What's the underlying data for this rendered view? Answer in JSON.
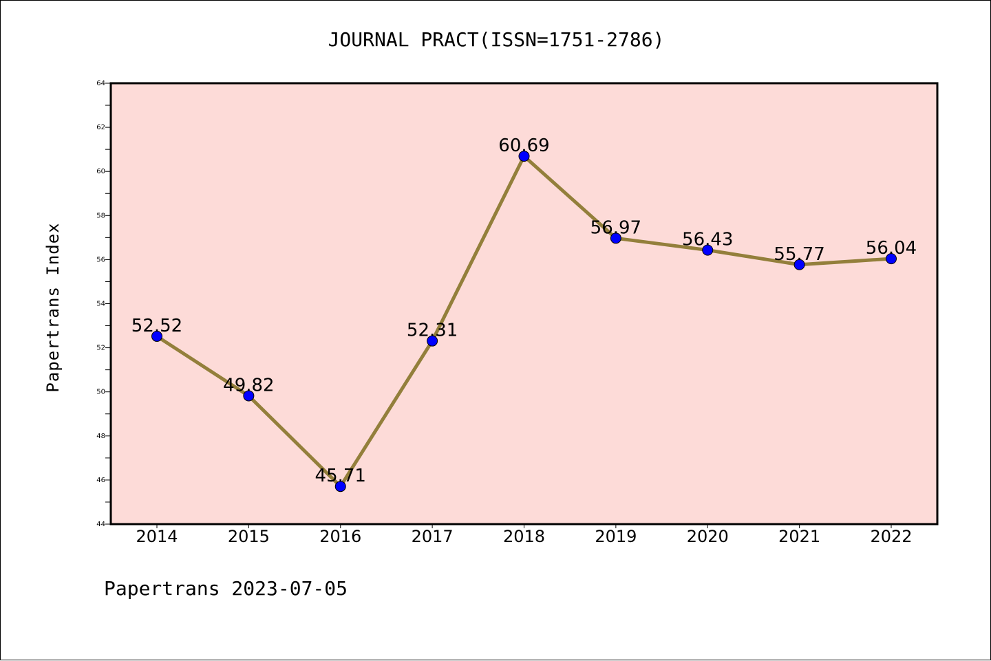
{
  "chart_data": {
    "type": "line",
    "title": "JOURNAL PRACT(ISSN=1751-2786)",
    "ylabel": "Papertrans Index",
    "xlabel": "",
    "footer": "Papertrans 2023-07-05",
    "categories": [
      "2014",
      "2015",
      "2016",
      "2017",
      "2018",
      "2019",
      "2020",
      "2021",
      "2022"
    ],
    "values": [
      52.52,
      49.82,
      45.71,
      52.31,
      60.69,
      56.97,
      56.43,
      55.77,
      56.04
    ],
    "data_labels": [
      "52.52",
      "49.82",
      "45.71",
      "52.31",
      "60.69",
      "56.97",
      "56.43",
      "55.77",
      "56.04"
    ],
    "ylim": [
      44,
      64
    ],
    "yticks": [
      "44",
      "46",
      "48",
      "50",
      "52",
      "54",
      "56",
      "58",
      "60",
      "62",
      "64"
    ],
    "grid": false,
    "colors": {
      "plot_background": "#fddbd8",
      "line": "#937f3b",
      "marker": "#0000ff",
      "axes": "#000000"
    }
  }
}
